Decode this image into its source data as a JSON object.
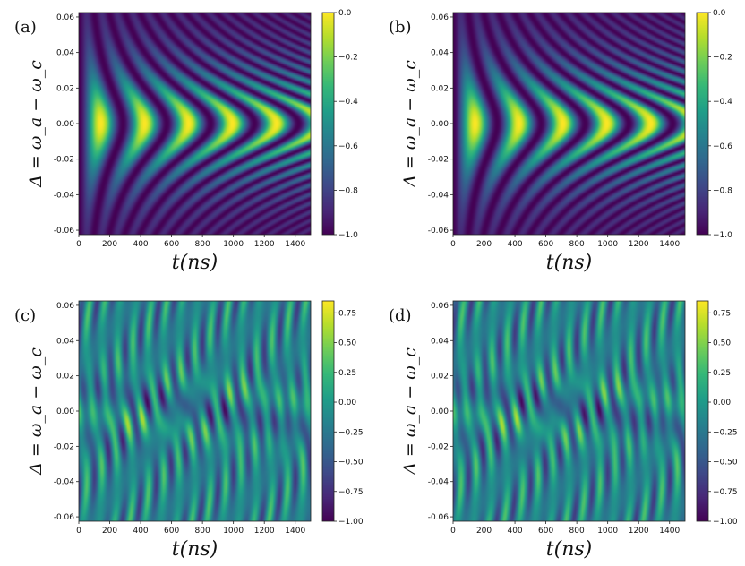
{
  "chart_data": [
    {
      "type": "heatmap",
      "panel_label": "(a)",
      "xlabel": "t(ns)",
      "ylabel": "Δ = ω_a − ω_c",
      "xlim": [
        0,
        1500
      ],
      "ylim": [
        -0.0625,
        0.0625
      ],
      "xticks": [
        "0",
        "200",
        "400",
        "600",
        "800",
        "1000",
        "1200",
        "1400"
      ],
      "yticks": [
        "-0.06",
        "-0.04",
        "-0.02",
        "0.00",
        "0.02",
        "0.04",
        "0.06"
      ],
      "colorbar": {
        "colormap": "viridis",
        "range": [
          -1.0,
          0.0
        ],
        "ticks": [
          "0.0",
          "−0.2",
          "−0.4",
          "−0.6",
          "−0.8",
          "−1.0"
        ]
      },
      "pattern": "nested-chevrons",
      "chevron_peak_times": [
        130,
        400,
        680,
        960,
        1240
      ]
    },
    {
      "type": "heatmap",
      "panel_label": "(b)",
      "xlabel": "t(ns)",
      "ylabel": "Δ = ω_a − ω_c",
      "xlim": [
        0,
        1500
      ],
      "ylim": [
        -0.0625,
        0.0625
      ],
      "xticks": [
        "0",
        "200",
        "400",
        "600",
        "800",
        "1000",
        "1200",
        "1400"
      ],
      "yticks": [
        "-0.06",
        "-0.04",
        "-0.02",
        "0.00",
        "0.02",
        "0.04",
        "0.06"
      ],
      "colorbar": {
        "colormap": "viridis",
        "range": [
          -1.0,
          0.0
        ],
        "ticks": [
          "0.0",
          "−0.2",
          "−0.4",
          "−0.6",
          "−0.8",
          "−1.0"
        ]
      },
      "pattern": "nested-chevrons",
      "chevron_peak_times": [
        130,
        400,
        680,
        960,
        1240
      ]
    },
    {
      "type": "heatmap",
      "panel_label": "(c)",
      "xlabel": "t(ns)",
      "ylabel": "Δ = ω_a − ω_c",
      "xlim": [
        0,
        1500
      ],
      "ylim": [
        -0.0625,
        0.0625
      ],
      "xticks": [
        "0",
        "200",
        "400",
        "600",
        "800",
        "1000",
        "1200",
        "1400"
      ],
      "yticks": [
        "-0.06",
        "-0.04",
        "-0.02",
        "0.00",
        "0.02",
        "0.04",
        "0.06"
      ],
      "colorbar": {
        "colormap": "viridis",
        "range": [
          -1.0,
          0.85
        ],
        "ticks": [
          "0.75",
          "0.50",
          "0.25",
          "0.00",
          "−0.25",
          "−0.50",
          "−0.75",
          "−1.00"
        ]
      },
      "pattern": "interference-stripes"
    },
    {
      "type": "heatmap",
      "panel_label": "(d)",
      "xlabel": "t(ns)",
      "ylabel": "Δ = ω_a − ω_c",
      "xlim": [
        0,
        1500
      ],
      "ylim": [
        -0.0625,
        0.0625
      ],
      "xticks": [
        "0",
        "200",
        "400",
        "600",
        "800",
        "1000",
        "1200",
        "1400"
      ],
      "yticks": [
        "-0.06",
        "-0.04",
        "-0.02",
        "0.00",
        "0.02",
        "0.04",
        "0.06"
      ],
      "colorbar": {
        "colormap": "viridis",
        "range": [
          -1.0,
          0.85
        ],
        "ticks": [
          "0.75",
          "0.50",
          "0.25",
          "0.00",
          "−0.25",
          "−0.50",
          "−0.75",
          "−1.00"
        ]
      },
      "pattern": "interference-stripes"
    }
  ]
}
